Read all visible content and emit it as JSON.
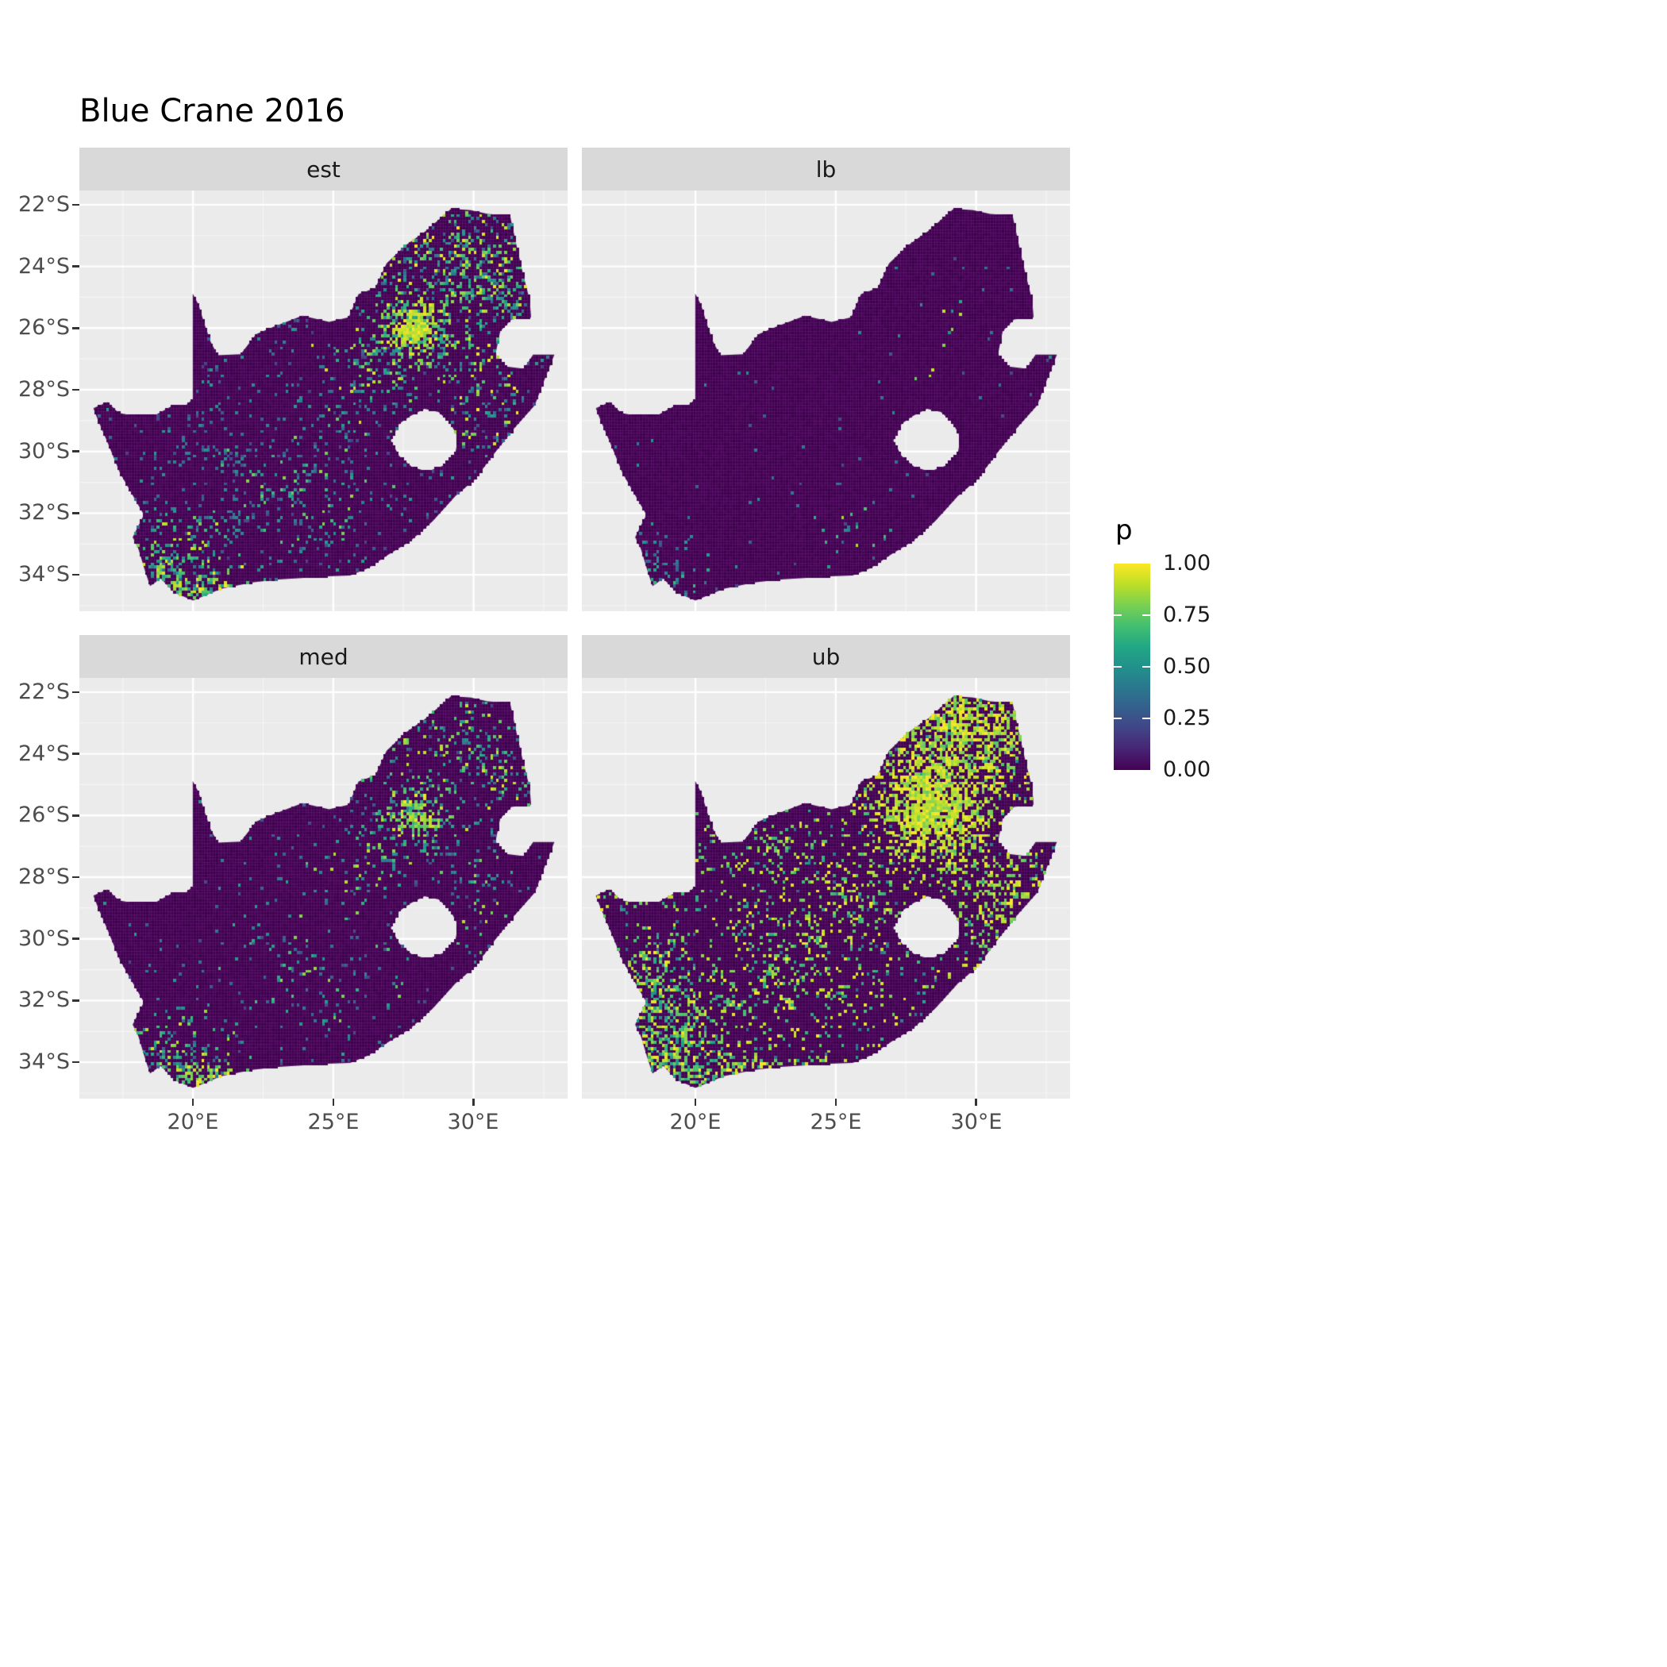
{
  "title": "Blue Crane 2016",
  "colors": {
    "background": "#ffffff",
    "panel_bg": "#ebebeb",
    "strip_bg": "#d9d9d9",
    "grid_major": "#ffffff",
    "axis_text": "#4d4d4d",
    "strip_text": "#1a1a1a",
    "title_text": "#000000",
    "legend_text": "#1a1a1a",
    "tick_mark": "#333333",
    "map_base": "#440154"
  },
  "chart_data": {
    "type": "heatmap",
    "title": "Blue Crane 2016",
    "region": "South Africa",
    "facets": [
      "est",
      "lb",
      "med",
      "ub"
    ],
    "x": {
      "ticks": [
        "20°E",
        "25°E",
        "30°E"
      ],
      "tick_values": [
        20,
        25,
        30
      ],
      "minor": [
        17.5,
        22.5,
        27.5,
        32.5
      ]
    },
    "y": {
      "ticks": [
        "22°S",
        "24°S",
        "26°S",
        "28°S",
        "30°S",
        "32°S",
        "34°S"
      ],
      "tick_values": [
        22,
        24,
        26,
        28,
        30,
        32,
        34
      ],
      "minor": [
        23,
        25,
        27,
        29,
        31,
        33,
        35
      ]
    },
    "axes": {
      "lon_min": 15.95,
      "lon_max": 33.35,
      "lat_min": 21.54,
      "lat_max": 35.18
    },
    "legend": {
      "title": "p",
      "labels": [
        "1.00",
        "0.75",
        "0.50",
        "0.25",
        "0.00"
      ],
      "values": [
        1,
        0.75,
        0.5,
        0.25,
        0
      ],
      "range": [
        0,
        1
      ]
    },
    "colormap": {
      "name": "viridis",
      "stops": [
        {
          "t": 0.0,
          "c": "#440154"
        },
        {
          "t": 0.1,
          "c": "#482475"
        },
        {
          "t": 0.2,
          "c": "#414487"
        },
        {
          "t": 0.3,
          "c": "#355f8d"
        },
        {
          "t": 0.4,
          "c": "#2a788e"
        },
        {
          "t": 0.5,
          "c": "#21918c"
        },
        {
          "t": 0.6,
          "c": "#22a884"
        },
        {
          "t": 0.7,
          "c": "#44bf70"
        },
        {
          "t": 0.8,
          "c": "#7ad151"
        },
        {
          "t": 0.9,
          "c": "#bddf26"
        },
        {
          "t": 1.0,
          "c": "#fde725"
        }
      ]
    },
    "cell_size_deg": 0.1,
    "map": {
      "outline": [
        [
          16.45,
          28.6
        ],
        [
          16.95,
          28.4
        ],
        [
          17.35,
          28.75
        ],
        [
          17.95,
          28.85
        ],
        [
          18.6,
          28.85
        ],
        [
          19.3,
          28.5
        ],
        [
          19.75,
          28.5
        ],
        [
          19.99,
          28.3
        ],
        [
          19.99,
          24.88
        ],
        [
          20.2,
          25.25
        ],
        [
          20.42,
          25.9
        ],
        [
          20.63,
          26.45
        ],
        [
          20.88,
          26.88
        ],
        [
          21.7,
          26.85
        ],
        [
          22.25,
          26.2
        ],
        [
          22.9,
          25.95
        ],
        [
          23.9,
          25.6
        ],
        [
          24.85,
          25.8
        ],
        [
          25.55,
          25.65
        ],
        [
          25.9,
          24.9
        ],
        [
          26.5,
          24.7
        ],
        [
          26.9,
          23.9
        ],
        [
          27.6,
          23.3
        ],
        [
          28.3,
          22.85
        ],
        [
          29.2,
          22.13
        ],
        [
          29.9,
          22.18
        ],
        [
          30.5,
          22.3
        ],
        [
          31.3,
          22.35
        ],
        [
          31.55,
          23.4
        ],
        [
          31.75,
          24.2
        ],
        [
          32.0,
          25.1
        ],
        [
          32.05,
          25.65
        ],
        [
          31.35,
          25.72
        ],
        [
          30.95,
          26.1
        ],
        [
          30.78,
          26.85
        ],
        [
          31.15,
          27.25
        ],
        [
          31.8,
          27.32
        ],
        [
          32.12,
          26.86
        ],
        [
          32.88,
          26.86
        ],
        [
          32.58,
          27.55
        ],
        [
          32.18,
          28.5
        ],
        [
          31.45,
          29.25
        ],
        [
          30.75,
          30.05
        ],
        [
          30.05,
          30.9
        ],
        [
          29.35,
          31.45
        ],
        [
          28.55,
          32.25
        ],
        [
          27.75,
          32.9
        ],
        [
          26.95,
          33.35
        ],
        [
          26.25,
          33.78
        ],
        [
          25.6,
          34.02
        ],
        [
          24.8,
          34.05
        ],
        [
          23.95,
          34.1
        ],
        [
          23.05,
          34.15
        ],
        [
          22.1,
          34.25
        ],
        [
          21.0,
          34.45
        ],
        [
          20.0,
          34.83
        ],
        [
          19.35,
          34.58
        ],
        [
          18.85,
          34.12
        ],
        [
          18.47,
          34.36
        ],
        [
          18.3,
          33.9
        ],
        [
          18.05,
          33.15
        ],
        [
          17.85,
          32.78
        ],
        [
          18.25,
          32.05
        ],
        [
          17.4,
          30.7
        ],
        [
          16.95,
          29.7
        ],
        [
          16.6,
          28.95
        ]
      ],
      "hole": [
        [
          27.05,
          29.65
        ],
        [
          27.35,
          29.1
        ],
        [
          27.75,
          28.85
        ],
        [
          28.25,
          28.62
        ],
        [
          28.75,
          28.72
        ],
        [
          29.15,
          29.05
        ],
        [
          29.45,
          29.55
        ],
        [
          29.35,
          30.05
        ],
        [
          28.95,
          30.45
        ],
        [
          28.35,
          30.65
        ],
        [
          27.8,
          30.5
        ],
        [
          27.35,
          30.15
        ]
      ]
    },
    "facet_patterns": {
      "est": {
        "seed": 11,
        "bg": {
          "density": 0.05,
          "vmin": 0.18,
          "vmax": 0.55
        },
        "blobs": [
          {
            "cx": 27.9,
            "cy": 25.95,
            "rx": 0.75,
            "ry": 0.6,
            "density": 0.95,
            "vmin": 0.8,
            "vmax": 1.0
          },
          {
            "cx": 27.9,
            "cy": 26.05,
            "rx": 1.5,
            "ry": 1.25,
            "density": 0.55,
            "vmin": 0.45,
            "vmax": 0.95
          },
          {
            "cx": 29.4,
            "cy": 23.7,
            "rx": 2.4,
            "ry": 1.7,
            "density": 0.3,
            "vmin": 0.3,
            "vmax": 1.0
          },
          {
            "cx": 31.0,
            "cy": 25.2,
            "rx": 1.0,
            "ry": 1.5,
            "density": 0.25,
            "vmin": 0.3,
            "vmax": 1.0
          },
          {
            "cx": 30.4,
            "cy": 28.9,
            "rx": 1.2,
            "ry": 1.7,
            "density": 0.17,
            "vmin": 0.3,
            "vmax": 1.0
          },
          {
            "cx": 26.2,
            "cy": 27.6,
            "rx": 1.5,
            "ry": 1.1,
            "density": 0.22,
            "vmin": 0.3,
            "vmax": 0.95
          },
          {
            "cx": 19.3,
            "cy": 33.6,
            "rx": 1.5,
            "ry": 1.3,
            "density": 0.38,
            "vmin": 0.3,
            "vmax": 0.95
          },
          {
            "cx": 20.2,
            "cy": 34.45,
            "rx": 1.4,
            "ry": 0.5,
            "density": 0.6,
            "vmin": 0.55,
            "vmax": 1.0
          },
          {
            "cx": 24.3,
            "cy": 31.4,
            "rx": 2.4,
            "ry": 1.7,
            "density": 0.12,
            "vmin": 0.25,
            "vmax": 0.85
          },
          {
            "cx": 22.5,
            "cy": 30.2,
            "rx": 3.2,
            "ry": 0.3,
            "density": 0.2,
            "vmin": 0.2,
            "vmax": 0.5
          },
          {
            "cx": 21.5,
            "cy": 31.8,
            "rx": 0.3,
            "ry": 2.0,
            "density": 0.18,
            "vmin": 0.2,
            "vmax": 0.5
          }
        ]
      },
      "lb": {
        "seed": 22,
        "bg": {
          "density": 0.007,
          "vmin": 0.2,
          "vmax": 0.5
        },
        "blobs": [
          {
            "cx": 19.2,
            "cy": 34.1,
            "rx": 1.0,
            "ry": 0.9,
            "density": 0.22,
            "vmin": 0.25,
            "vmax": 0.7
          },
          {
            "cx": 28.5,
            "cy": 27.2,
            "rx": 0.8,
            "ry": 0.8,
            "density": 0.06,
            "vmin": 0.5,
            "vmax": 1.0
          },
          {
            "cx": 25.3,
            "cy": 32.3,
            "rx": 1.3,
            "ry": 0.9,
            "density": 0.03,
            "vmin": 0.3,
            "vmax": 0.9
          },
          {
            "cx": 29.4,
            "cy": 25.3,
            "rx": 0.8,
            "ry": 0.8,
            "density": 0.04,
            "vmin": 0.4,
            "vmax": 1.0
          },
          {
            "cx": 18.6,
            "cy": 33.0,
            "rx": 0.6,
            "ry": 0.8,
            "density": 0.08,
            "vmin": 0.25,
            "vmax": 0.6
          }
        ]
      },
      "med": {
        "seed": 33,
        "bg": {
          "density": 0.025,
          "vmin": 0.18,
          "vmax": 0.55
        },
        "blobs": [
          {
            "cx": 27.85,
            "cy": 26.0,
            "rx": 0.7,
            "ry": 0.55,
            "density": 0.8,
            "vmin": 0.6,
            "vmax": 1.0
          },
          {
            "cx": 27.9,
            "cy": 26.1,
            "rx": 1.4,
            "ry": 1.15,
            "density": 0.4,
            "vmin": 0.35,
            "vmax": 0.9
          },
          {
            "cx": 29.3,
            "cy": 23.8,
            "rx": 2.4,
            "ry": 1.7,
            "density": 0.17,
            "vmin": 0.28,
            "vmax": 0.95
          },
          {
            "cx": 31.0,
            "cy": 25.3,
            "rx": 1.0,
            "ry": 1.4,
            "density": 0.15,
            "vmin": 0.3,
            "vmax": 0.95
          },
          {
            "cx": 30.3,
            "cy": 28.8,
            "rx": 1.2,
            "ry": 1.6,
            "density": 0.11,
            "vmin": 0.3,
            "vmax": 0.9
          },
          {
            "cx": 19.4,
            "cy": 33.7,
            "rx": 1.4,
            "ry": 1.2,
            "density": 0.3,
            "vmin": 0.3,
            "vmax": 0.95
          },
          {
            "cx": 20.7,
            "cy": 34.5,
            "rx": 1.7,
            "ry": 0.45,
            "density": 0.75,
            "vmin": 0.65,
            "vmax": 1.0
          },
          {
            "cx": 24.6,
            "cy": 31.3,
            "rx": 2.3,
            "ry": 1.7,
            "density": 0.1,
            "vmin": 0.25,
            "vmax": 0.85
          },
          {
            "cx": 26.2,
            "cy": 27.7,
            "rx": 1.4,
            "ry": 1.0,
            "density": 0.13,
            "vmin": 0.3,
            "vmax": 0.9
          }
        ]
      },
      "ub": {
        "seed": 44,
        "bg": {
          "density": 0.05,
          "vmin": 0.3,
          "vmax": 1.0
        },
        "blobs": [
          {
            "cx": 28.4,
            "cy": 25.9,
            "rx": 1.8,
            "ry": 1.45,
            "density": 0.97,
            "vmin": 0.78,
            "vmax": 1.0
          },
          {
            "cx": 29.2,
            "cy": 24.0,
            "rx": 2.6,
            "ry": 1.9,
            "density": 0.55,
            "vmin": 0.72,
            "vmax": 1.0
          },
          {
            "cx": 30.0,
            "cy": 22.9,
            "rx": 2.0,
            "ry": 0.9,
            "density": 0.5,
            "vmin": 0.75,
            "vmax": 1.0
          },
          {
            "cx": 30.9,
            "cy": 28.6,
            "rx": 1.8,
            "ry": 2.0,
            "density": 0.35,
            "vmin": 0.7,
            "vmax": 1.0
          },
          {
            "cx": 19.2,
            "cy": 33.2,
            "rx": 1.7,
            "ry": 1.8,
            "density": 0.5,
            "vmin": 0.45,
            "vmax": 1.0
          },
          {
            "cx": 21.6,
            "cy": 34.3,
            "rx": 2.6,
            "ry": 0.6,
            "density": 0.45,
            "vmin": 0.55,
            "vmax": 1.0
          },
          {
            "cx": 23.5,
            "cy": 30.8,
            "rx": 3.4,
            "ry": 2.4,
            "density": 0.16,
            "vmin": 0.6,
            "vmax": 1.0
          },
          {
            "cx": 18.4,
            "cy": 31.6,
            "rx": 0.9,
            "ry": 1.6,
            "density": 0.45,
            "vmin": 0.5,
            "vmax": 1.0
          },
          {
            "cx": 22.5,
            "cy": 27.3,
            "rx": 2.6,
            "ry": 1.4,
            "density": 0.13,
            "vmin": 0.6,
            "vmax": 1.0
          },
          {
            "cx": 25.8,
            "cy": 28.6,
            "rx": 1.6,
            "ry": 1.2,
            "density": 0.2,
            "vmin": 0.65,
            "vmax": 1.0
          },
          {
            "cx": 18.3,
            "cy": 28.7,
            "rx": 1.5,
            "ry": 0.35,
            "density": 0.3,
            "vmin": 0.6,
            "vmax": 1.0
          }
        ]
      }
    }
  }
}
